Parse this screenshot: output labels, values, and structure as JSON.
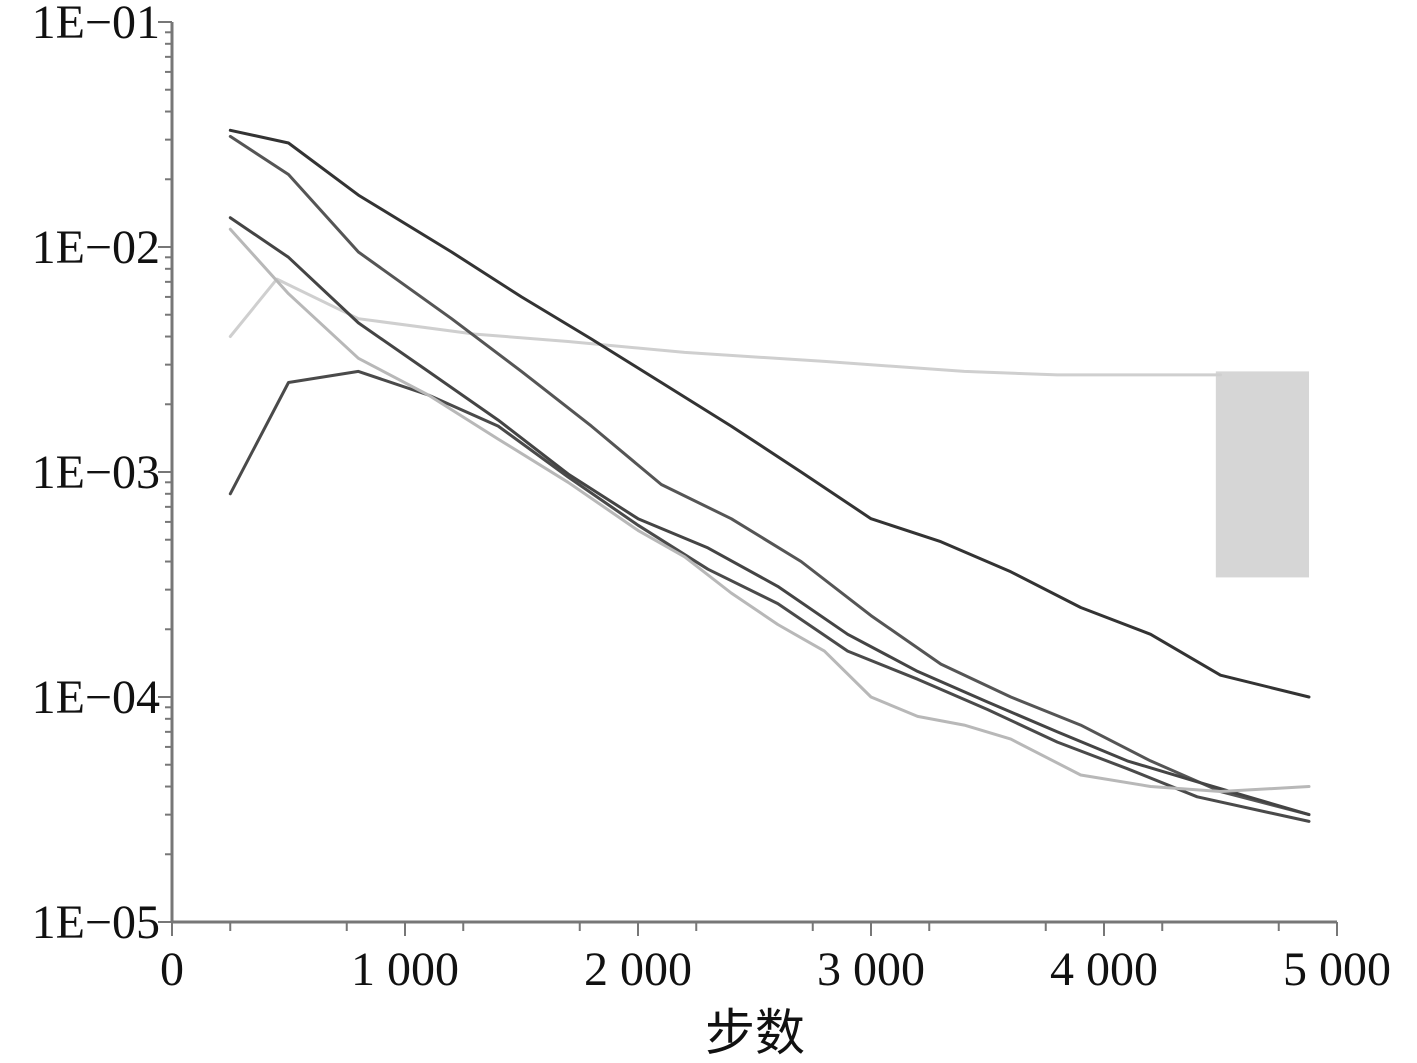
{
  "chart_data": {
    "type": "line",
    "title": "",
    "xlabel": "步数",
    "ylabel": "",
    "xscale": "linear",
    "yscale": "log",
    "xlim": [
      0,
      5000
    ],
    "ylim": [
      1e-05,
      0.1
    ],
    "grid": false,
    "legend": "none",
    "x_ticks": [
      {
        "value": 0,
        "label": "0"
      },
      {
        "value": 1000,
        "label": "1 000"
      },
      {
        "value": 2000,
        "label": "2 000"
      },
      {
        "value": 3000,
        "label": "3 000"
      },
      {
        "value": 4000,
        "label": "4 000"
      },
      {
        "value": 5000,
        "label": "5 000"
      }
    ],
    "y_ticks": [
      {
        "value": 1e-05,
        "label": "1E−05"
      },
      {
        "value": 0.0001,
        "label": "1E−04"
      },
      {
        "value": 0.001,
        "label": "1E−03"
      },
      {
        "value": 0.01,
        "label": "1E−02"
      },
      {
        "value": 0.1,
        "label": "1E−01"
      }
    ],
    "series": [
      {
        "color": "#cfcfcf",
        "width": 3,
        "x": [
          250,
          450,
          800,
          1300,
          1700,
          2200,
          2800,
          3400,
          3800,
          4200,
          4500
        ],
        "y": [
          0.004,
          0.0072,
          0.0048,
          0.0041,
          0.0038,
          0.0034,
          0.0031,
          0.0028,
          0.0027,
          0.0027,
          0.0027
        ]
      },
      {
        "color": "#d6d6d6",
        "width": 0,
        "kind": "band",
        "x": [
          4480,
          4880
        ],
        "y": [
          0.00034,
          0.0028
        ]
      },
      {
        "color": "#333333",
        "width": 3,
        "x": [
          250,
          500,
          800,
          1200,
          1500,
          1800,
          2100,
          2400,
          2700,
          3000,
          3300,
          3600,
          3900,
          4200,
          4500,
          4880
        ],
        "y": [
          0.033,
          0.029,
          0.017,
          0.0095,
          0.006,
          0.0039,
          0.0025,
          0.0016,
          0.001,
          0.00062,
          0.00049,
          0.00036,
          0.00025,
          0.00019,
          0.000125,
          0.0001
        ]
      },
      {
        "color": "#555555",
        "width": 3,
        "x": [
          250,
          500,
          800,
          1200,
          1500,
          1800,
          2100,
          2400,
          2700,
          3000,
          3300,
          3600,
          3900,
          4200,
          4500,
          4880
        ],
        "y": [
          0.031,
          0.021,
          0.0095,
          0.0048,
          0.0028,
          0.0016,
          0.00088,
          0.00062,
          0.0004,
          0.00023,
          0.00014,
          0.0001,
          7.5e-05,
          5.2e-05,
          3.8e-05,
          3e-05
        ]
      },
      {
        "color": "#444444",
        "width": 3,
        "x": [
          250,
          500,
          800,
          1100,
          1400,
          1700,
          2000,
          2300,
          2600,
          2900,
          3200,
          3500,
          3800,
          4100,
          4400,
          4880
        ],
        "y": [
          0.0135,
          0.009,
          0.0046,
          0.0028,
          0.0017,
          0.00098,
          0.00062,
          0.00046,
          0.00031,
          0.00019,
          0.00013,
          9.5e-05,
          7e-05,
          5.2e-05,
          4.2e-05,
          3e-05
        ]
      },
      {
        "color": "#4a4a4a",
        "width": 3,
        "x": [
          250,
          500,
          800,
          1100,
          1400,
          1700,
          2000,
          2300,
          2600,
          2900,
          3200,
          3500,
          3800,
          4100,
          4400,
          4880
        ],
        "y": [
          0.0008,
          0.0025,
          0.0028,
          0.0022,
          0.0016,
          0.00095,
          0.00058,
          0.00037,
          0.00026,
          0.00016,
          0.00012,
          8.8e-05,
          6.3e-05,
          4.8e-05,
          3.6e-05,
          2.8e-05
        ]
      },
      {
        "color": "#b8b8b8",
        "width": 3,
        "x": [
          250,
          500,
          800,
          1100,
          1400,
          1700,
          2000,
          2200,
          2400,
          2600,
          2800,
          3000,
          3200,
          3400,
          3600,
          3900,
          4200,
          4500,
          4880
        ],
        "y": [
          0.012,
          0.0062,
          0.0032,
          0.0022,
          0.0014,
          0.0009,
          0.00055,
          0.00042,
          0.00029,
          0.00021,
          0.00016,
          0.0001,
          8.2e-05,
          7.5e-05,
          6.5e-05,
          4.5e-05,
          4e-05,
          3.8e-05,
          4e-05
        ]
      }
    ]
  }
}
